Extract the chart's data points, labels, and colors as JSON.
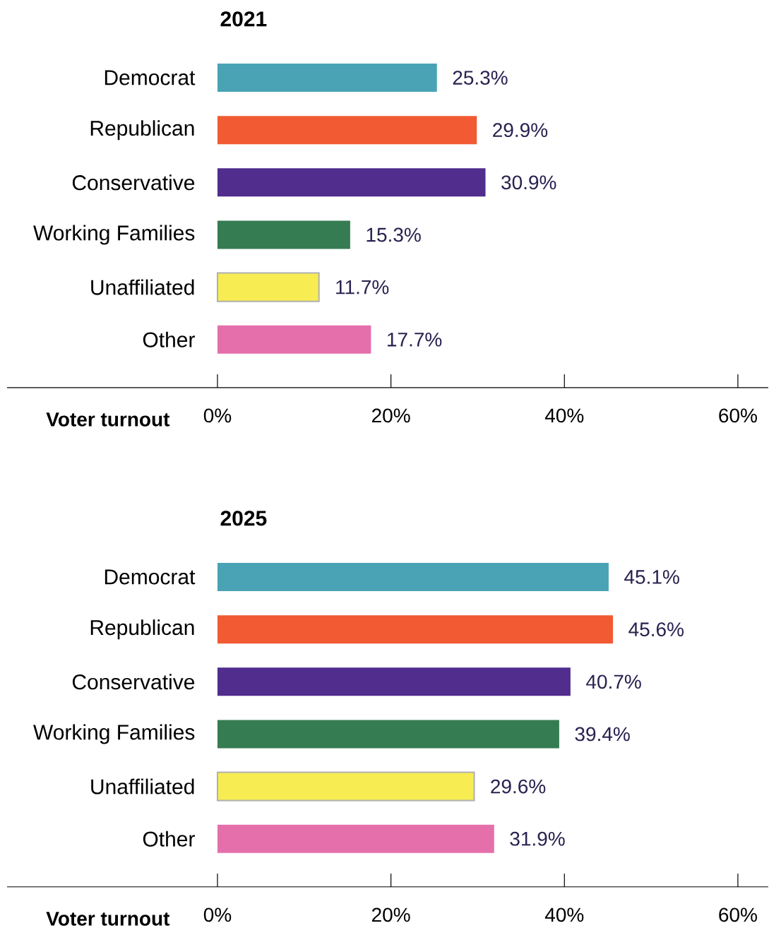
{
  "chart_data": [
    {
      "type": "bar",
      "orientation": "horizontal",
      "title": "2021",
      "xlabel": "Voter turnout",
      "categories": [
        "Democrat",
        "Republican",
        "Conservative",
        "Working Families",
        "Unaffiliated",
        "Other"
      ],
      "values": [
        25.3,
        29.9,
        30.9,
        15.3,
        11.7,
        17.7
      ],
      "value_labels": [
        "25.3%",
        "29.9%",
        "30.9%",
        "15.3%",
        "11.7%",
        "17.7%"
      ],
      "colors": [
        "#49a3b5",
        "#f15a33",
        "#512d8e",
        "#367c52",
        "#f7ec52",
        "#e46fab"
      ],
      "xlim": [
        0,
        63.5
      ],
      "xticks": [
        {
          "value": 0,
          "label": "0%"
        },
        {
          "value": 20,
          "label": "20%"
        },
        {
          "value": 40,
          "label": "40%"
        },
        {
          "value": 60,
          "label": "60%"
        }
      ]
    },
    {
      "type": "bar",
      "orientation": "horizontal",
      "title": "2025",
      "xlabel": "Voter turnout",
      "categories": [
        "Democrat",
        "Republican",
        "Conservative",
        "Working Families",
        "Unaffiliated",
        "Other"
      ],
      "values": [
        45.1,
        45.6,
        40.7,
        39.4,
        29.6,
        31.9
      ],
      "value_labels": [
        "45.1%",
        "45.6%",
        "40.7%",
        "39.4%",
        "29.6%",
        "31.9%"
      ],
      "colors": [
        "#49a3b5",
        "#f15a33",
        "#512d8e",
        "#367c52",
        "#f7ec52",
        "#e46fab"
      ],
      "xlim": [
        0,
        63.5
      ],
      "xticks": [
        {
          "value": 0,
          "label": "0%"
        },
        {
          "value": 20,
          "label": "20%"
        },
        {
          "value": 40,
          "label": "40%"
        },
        {
          "value": 60,
          "label": "60%"
        }
      ]
    }
  ]
}
